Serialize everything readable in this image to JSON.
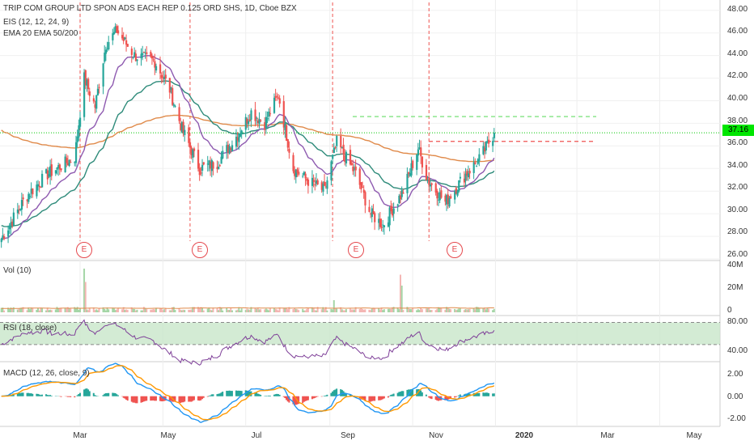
{
  "header": {
    "title": "TRIP COM GROUP LTD SPON ADS EACH REP 0.125 ORD SHS, 1D, Cboe BZX",
    "indicator1": "EIS (12, 12, 24, 9)",
    "indicator2": "EMA 20 EMA 50/200"
  },
  "last_price_tag": "37.16",
  "earnings_marker": "E",
  "colors": {
    "up": "#26a69a",
    "down": "#ef5350",
    "ema20": "#8e5ab0",
    "ema50": "#2e8b7a",
    "ema200": "#e08a4a",
    "rsi": "#7e3f98",
    "macd": "#2196f3",
    "signal": "#ff9800",
    "price_line": "#00c800",
    "rsi_band": "#c8e6c9"
  },
  "chart_data": [
    {
      "type": "candlestick",
      "name": "price",
      "y_ticks": [
        "48.00",
        "46.00",
        "44.00",
        "42.00",
        "40.00",
        "38.00",
        "36.00",
        "34.00",
        "32.00",
        "30.00",
        "28.00",
        "26.00"
      ],
      "ylim": [
        26,
        48.7
      ],
      "x_ticks": [
        "Mar",
        "May",
        "Jul",
        "Sep",
        "Nov",
        "2020",
        "Mar",
        "May"
      ],
      "approx_path": [
        [
          "2019-01-02",
          27.8
        ],
        [
          "2019-01-20",
          31.5
        ],
        [
          "2019-02-05",
          33.5
        ],
        [
          "2019-02-25",
          35.0
        ],
        [
          "2019-03-04",
          42.0
        ],
        [
          "2019-03-12",
          39.5
        ],
        [
          "2019-03-20",
          45.0
        ],
        [
          "2019-03-28",
          46.2
        ],
        [
          "2019-04-10",
          44.0
        ],
        [
          "2019-04-25",
          43.5
        ],
        [
          "2019-05-06",
          41.0
        ],
        [
          "2019-05-15",
          37.5
        ],
        [
          "2019-05-28",
          34.0
        ],
        [
          "2019-06-10",
          34.5
        ],
        [
          "2019-06-25",
          37.0
        ],
        [
          "2019-07-05",
          39.0
        ],
        [
          "2019-07-15",
          38.0
        ],
        [
          "2019-07-25",
          40.5
        ],
        [
          "2019-08-05",
          34.0
        ],
        [
          "2019-08-15",
          33.0
        ],
        [
          "2019-08-28",
          32.0
        ],
        [
          "2019-09-06",
          36.3
        ],
        [
          "2019-09-20",
          33.5
        ],
        [
          "2019-10-01",
          30.0
        ],
        [
          "2019-10-10",
          29.0
        ],
        [
          "2019-10-25",
          32.0
        ],
        [
          "2019-11-05",
          35.8
        ],
        [
          "2019-11-12",
          33.0
        ],
        [
          "2019-11-25",
          31.0
        ],
        [
          "2019-12-10",
          33.5
        ],
        [
          "2019-12-20",
          34.8
        ],
        [
          "2019-12-31",
          37.16
        ]
      ],
      "ema20_end": 33.9,
      "ema50_end": 33.3,
      "ema200_end": 34.3,
      "resistance_levels": [
        38.6,
        36.4
      ],
      "earnings_dates": [
        "2019-03-01",
        "2019-05-21",
        "2019-09-03",
        "2019-11-13"
      ]
    },
    {
      "type": "bar",
      "name": "Vol (10)",
      "y_ticks": [
        "40M",
        "20M",
        "0"
      ],
      "ylim": [
        0,
        40
      ],
      "spikes": [
        [
          "2019-03-04",
          36
        ],
        [
          "2019-03-05",
          25
        ],
        [
          "2019-09-04",
          10
        ],
        [
          "2019-10-23",
          31
        ],
        [
          "2019-10-24",
          22
        ]
      ]
    },
    {
      "type": "line",
      "name": "RSI (18, close)",
      "y_ticks": [
        "80.00",
        "40.00"
      ],
      "ylim": [
        30,
        85
      ],
      "band": [
        50,
        80
      ]
    },
    {
      "type": "line",
      "name": "MACD (12, 26, close, 9)",
      "y_ticks": [
        "2.00",
        "0.00",
        "-2.00"
      ],
      "ylim": [
        -2.3,
        2.6
      ]
    }
  ]
}
